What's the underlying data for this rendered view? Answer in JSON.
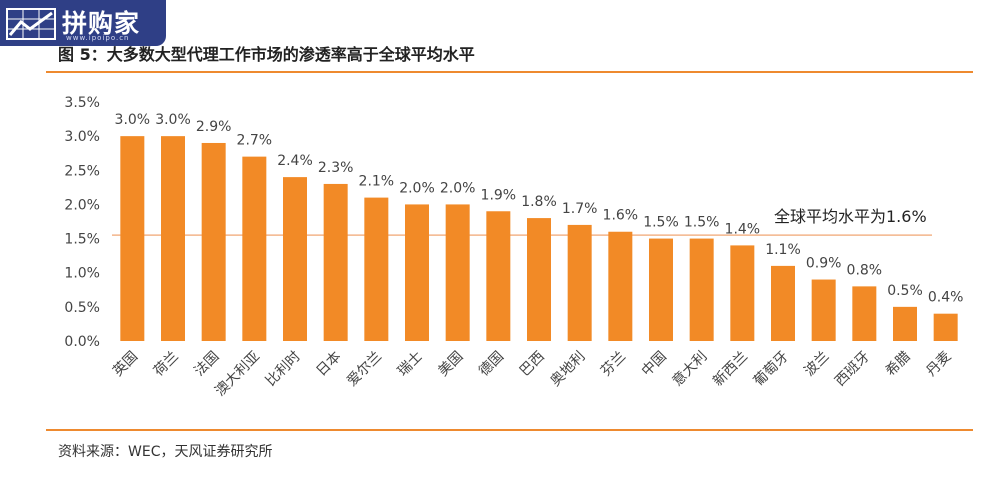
{
  "logo": {
    "text": "拼购家",
    "url": "www.ipoipo.cn"
  },
  "figure": {
    "title": "图 5：大多数大型代理工作市场的渗透率高于全球平均水平",
    "source": "资料来源：WEC，天风证券研究所"
  },
  "colors": {
    "bar": "#f28a26",
    "rule": "#ee8a2f",
    "average_line": "#f3b58a",
    "logo_bg": "#2f3f86"
  },
  "chart_data": {
    "type": "bar",
    "categories": [
      "英国",
      "荷兰",
      "法国",
      "澳大利亚",
      "比利时",
      "日本",
      "爱尔兰",
      "瑞士",
      "美国",
      "德国",
      "巴西",
      "奥地利",
      "芬兰",
      "中国",
      "意大利",
      "新西兰",
      "葡萄牙",
      "波兰",
      "西班牙",
      "希腊",
      "丹麦"
    ],
    "values": [
      3.0,
      3.0,
      2.9,
      2.7,
      2.4,
      2.3,
      2.1,
      2.0,
      2.0,
      1.9,
      1.8,
      1.7,
      1.6,
      1.5,
      1.5,
      1.4,
      1.1,
      0.9,
      0.8,
      0.5,
      0.4
    ],
    "value_labels": [
      "3.0%",
      "3.0%",
      "2.9%",
      "2.7%",
      "2.4%",
      "2.3%",
      "2.1%",
      "2.0%",
      "2.0%",
      "1.9%",
      "1.8%",
      "1.7%",
      "1.6%",
      "1.5%",
      "1.5%",
      "1.4%",
      "1.1%",
      "0.9%",
      "0.8%",
      "0.5%",
      "0.4%"
    ],
    "ylim": [
      0,
      3.5
    ],
    "yticks": [
      0,
      0.5,
      1.0,
      1.5,
      2.0,
      2.5,
      3.0,
      3.5
    ],
    "ytick_labels": [
      "0.0%",
      "0.5%",
      "1.0%",
      "1.5%",
      "2.0%",
      "2.5%",
      "3.0%",
      "3.5%"
    ],
    "reference_line": {
      "value": 1.55,
      "label": "全球平均水平为1.6%"
    },
    "grid": false,
    "legend": false,
    "xlabel": "",
    "ylabel": ""
  }
}
